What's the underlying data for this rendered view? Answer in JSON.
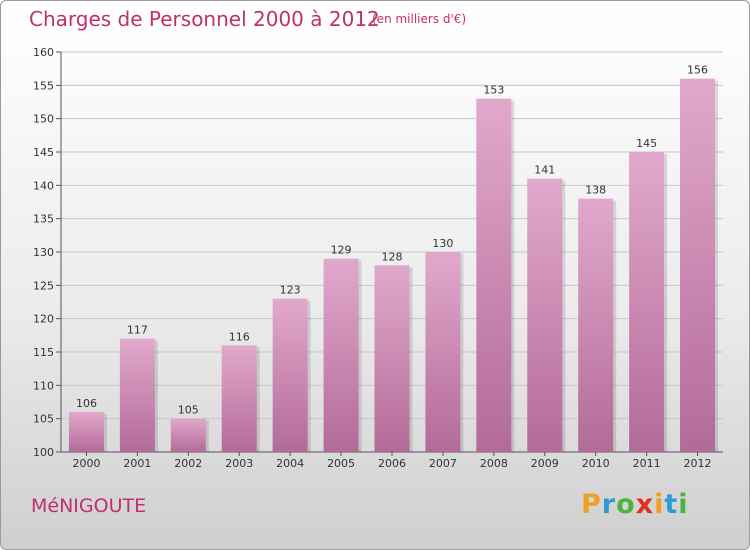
{
  "title": "Charges de Personnel 2000 à 2012",
  "subtitle": "(en milliers d'€)",
  "commune": "MéNIGOUTE",
  "logo": {
    "letters": [
      "P",
      "r",
      "o",
      "x",
      "i",
      "t",
      "i"
    ],
    "colors": [
      "#f0a020",
      "#2e9ad6",
      "#49b53c",
      "#e0301e",
      "#f0a020",
      "#2e9ad6",
      "#49b53c"
    ]
  },
  "colors": {
    "bar_top": "#e2a8cc",
    "bar_bottom": "#b26b98",
    "accent": "#c0306a"
  },
  "chart_data": {
    "type": "bar",
    "categories": [
      "2000",
      "2001",
      "2002",
      "2003",
      "2004",
      "2005",
      "2006",
      "2007",
      "2008",
      "2009",
      "2010",
      "2011",
      "2012"
    ],
    "values": [
      106,
      117,
      105,
      116,
      123,
      129,
      128,
      130,
      153,
      141,
      138,
      145,
      156
    ],
    "ylim": [
      100,
      160
    ],
    "yticks": [
      100,
      105,
      110,
      115,
      120,
      125,
      130,
      135,
      140,
      145,
      150,
      155,
      160
    ],
    "grid": true,
    "legend": "none"
  }
}
